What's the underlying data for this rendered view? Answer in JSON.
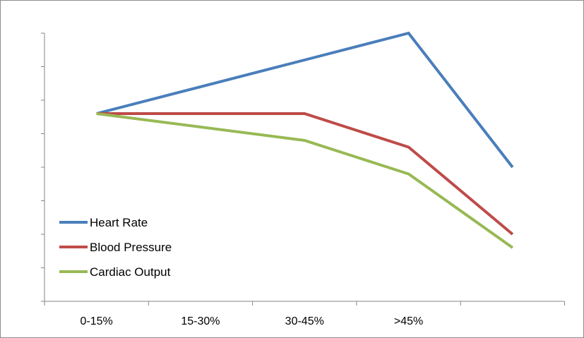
{
  "chart_data": {
    "type": "line",
    "categories": [
      "0-15%",
      "15-30%",
      "30-45%",
      ">45%"
    ],
    "x_points": [
      0,
      2,
      3,
      4
    ],
    "ylim": [
      0,
      8
    ],
    "y_ticks": [
      0,
      1,
      2,
      3,
      4,
      5,
      6,
      7,
      8
    ],
    "y_tick_labels_shown": false,
    "grid": false,
    "legend_position": "bottom-left",
    "series": [
      {
        "name": "Heart Rate",
        "color": "#4a7ebb",
        "values": [
          5.6,
          7.2,
          8.0,
          4.0
        ]
      },
      {
        "name": "Blood Pressure",
        "color": "#be4b48",
        "values": [
          5.6,
          5.6,
          4.6,
          2.0
        ]
      },
      {
        "name": "Cardiac Output",
        "color": "#98b954",
        "values": [
          5.6,
          4.8,
          3.8,
          1.6
        ]
      }
    ]
  }
}
